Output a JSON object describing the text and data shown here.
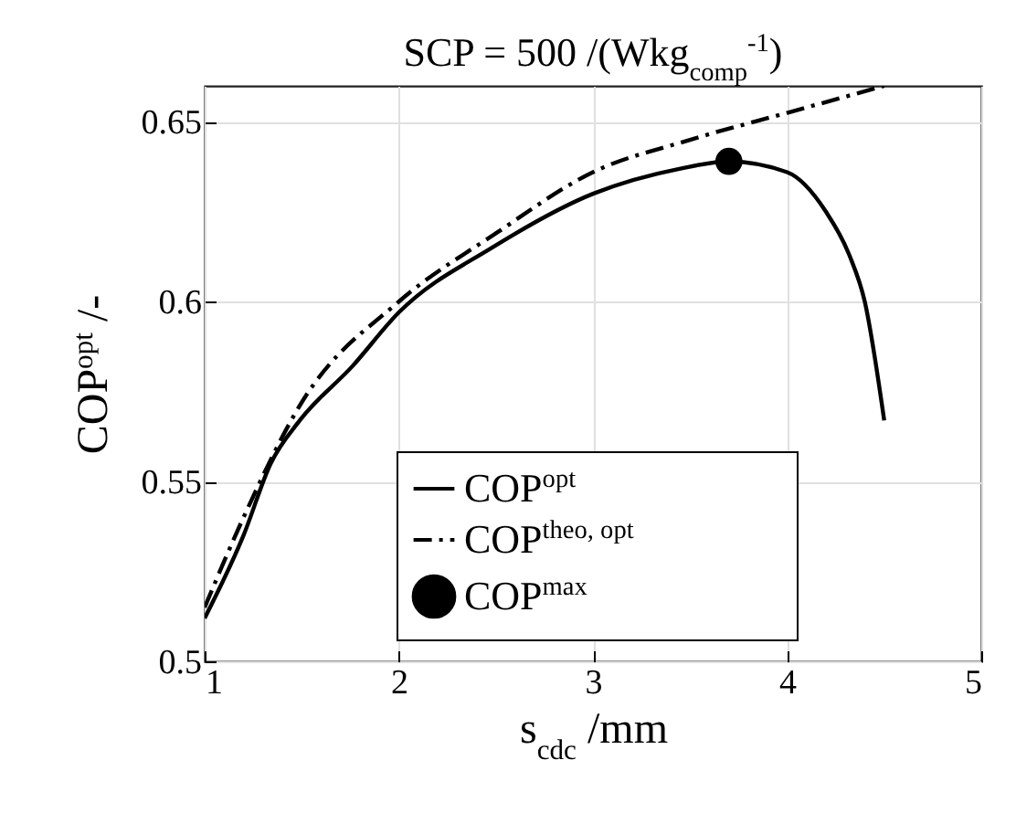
{
  "chart_data": {
    "type": "line",
    "title": "SCP = 500 /(Wkg$_{comp}$$^{-1}$)",
    "xlabel": "s$_{cdc}$ /mm",
    "ylabel": "COP$^{opt}$ /-",
    "xlim": [
      1,
      5
    ],
    "xticks": [
      1,
      2,
      3,
      4,
      5
    ],
    "ylim": [
      0.5,
      0.66
    ],
    "yticks": [
      0.5,
      0.55,
      0.6,
      0.65
    ],
    "grid": true,
    "legend": "bottom",
    "series": [
      {
        "name": "COP$^{opt}$",
        "color": "#000000",
        "line_style": "solid",
        "x": [
          1,
          1.2,
          1.34,
          1.49,
          1.76,
          2,
          2.48,
          3,
          3.45,
          3.7,
          4,
          4.2,
          4.32,
          4.4,
          4.5
        ],
        "values": [
          0.512,
          0.535,
          0.555,
          0.567,
          0.582,
          0.597,
          0.615,
          0.63,
          0.637,
          0.639,
          0.636,
          0.625,
          0.613,
          0.6,
          0.567
        ]
      },
      {
        "name": "COP$^{theo, opt}$",
        "color": "#000000",
        "line_style": "dashed",
        "x": [
          1,
          1.2,
          1.5,
          2,
          2.5,
          3,
          3.5,
          4,
          4.5
        ],
        "values": [
          0.515,
          0.54,
          0.572,
          0.6,
          0.619,
          0.636,
          0.645,
          0.6525,
          0.66
        ]
      },
      {
        "name": "COP$^{max}$",
        "type": "scatter",
        "marker": "circle",
        "color": "#000000",
        "x": [
          3.7
        ],
        "values": [
          0.639
        ]
      }
    ]
  }
}
